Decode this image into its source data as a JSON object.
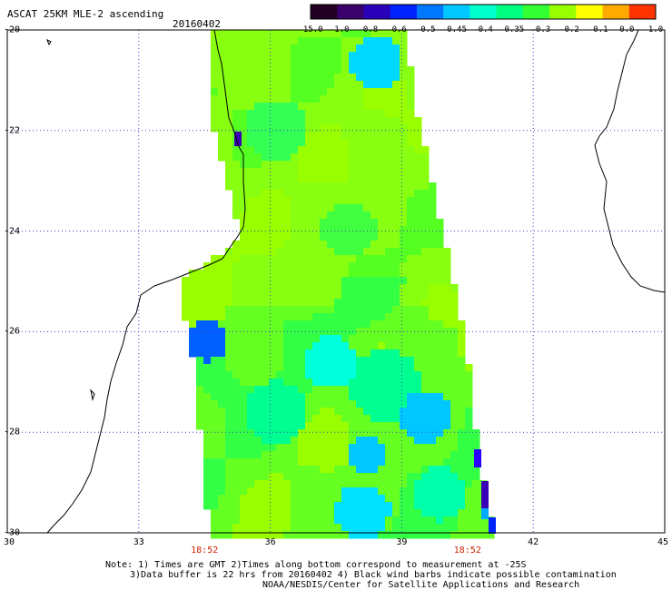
{
  "header": {
    "title": "ASCAT 25KM MLE-2 ascending",
    "date": "20160402"
  },
  "colorbar": {
    "labels": [
      "-15.0",
      "-1.0",
      "-0.8",
      "-0.6",
      "-0.5",
      "-0.45",
      "-0.4",
      "-0.35",
      "-0.3",
      "-0.2",
      "-0.1",
      "0.0",
      "1.0"
    ],
    "colors": [
      "#220022",
      "#3a006b",
      "#2a00b8",
      "#0022ff",
      "#0077ff",
      "#00c8ff",
      "#00ffcc",
      "#00ff80",
      "#33ff33",
      "#99ff00",
      "#ffff00",
      "#ffaa00",
      "#ff3300"
    ]
  },
  "map": {
    "lat_ticks": [
      "-20",
      "-22",
      "-24",
      "-26",
      "-28",
      "-30"
    ],
    "lon_ticks": [
      "30",
      "33",
      "36",
      "39",
      "42",
      "45"
    ],
    "lat_range": [
      -30,
      -20
    ],
    "lon_range": [
      30,
      45
    ],
    "times": [
      {
        "label": "18:52",
        "lon": 34.5
      },
      {
        "label": "18:52",
        "lon": 40.5
      }
    ]
  },
  "notes": {
    "line1": "Note: 1) Times are GMT 2)Times along bottom correspond to measurement at -25S",
    "line2": "3)Data buffer is 22 hrs from 20160402 4) Black wind barbs indicate possible contamination",
    "line3": "NOAA/NESDIS/Center for Satellite Applications and Research"
  }
}
